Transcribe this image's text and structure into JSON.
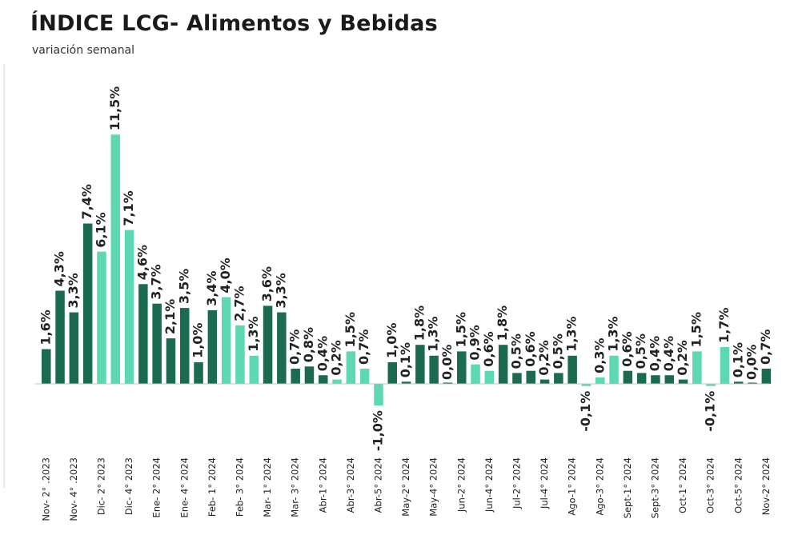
{
  "header": {
    "title": "ÍNDICE LCG- Alimentos y Bebidas",
    "subtitle": "variación semanal"
  },
  "colors": {
    "dark": "#1a6b4f",
    "light": "#5ed8b3"
  },
  "chart_data": {
    "type": "bar",
    "title": "ÍNDICE LCG- Alimentos y Bebidas",
    "subtitle": "variación semanal",
    "ylim": [
      -1.3,
      12.6
    ],
    "grid": false,
    "categories": [
      "Nov- 2° .2023",
      "",
      "Nov- 4° .2023",
      "",
      "Dic- 2° 2023",
      "",
      "Dic- 4° 2023",
      "",
      "Ene- 2° 2024",
      "",
      "Ene- 4° 2024",
      "",
      "Feb- 1° 2024",
      "",
      "Feb- 3° 2024",
      "",
      "Mar- 1° 2024",
      "",
      "Mar- 3° 2024",
      "",
      "Abr-1° 2024",
      "",
      "Abr-3° 2024",
      "",
      "Abr-5° 2024",
      "",
      "May-2° 2024",
      "",
      "May-4° 2024",
      "",
      "Jun-2° 2024",
      "",
      "Jun-4° 2024",
      "",
      "Jul-2° 2024",
      "",
      "Jul-4° 2024",
      "",
      "Ago-1° 2024",
      "",
      "Ago-3° 2024",
      "",
      "Sept-1° 2024",
      "",
      "Sept-3° 2024",
      "",
      "Oct-1° 2024",
      "",
      "Oct-3° 2024",
      "",
      "Oct-5° 2024",
      "",
      "Nov-2° 2024"
    ],
    "values": [
      1.6,
      4.3,
      3.3,
      7.4,
      6.1,
      11.5,
      7.1,
      4.6,
      3.7,
      2.1,
      3.5,
      1.0,
      3.4,
      4.0,
      2.7,
      1.3,
      3.6,
      3.3,
      0.7,
      0.8,
      0.4,
      0.2,
      1.5,
      0.7,
      -1.0,
      1.0,
      0.1,
      1.8,
      1.3,
      0.0,
      1.5,
      0.9,
      0.6,
      1.8,
      0.5,
      0.6,
      0.2,
      0.5,
      1.3,
      -0.1,
      0.3,
      1.3,
      0.6,
      0.5,
      0.4,
      0.4,
      0.2,
      1.5,
      -0.1,
      1.7,
      0.1,
      0.0,
      0.7
    ],
    "labels": [
      "1,6%",
      "4,3%",
      "3,3%",
      "7,4%",
      "6,1%",
      "11,5%",
      "7,1%",
      "4,6%",
      "3,7%",
      "2,1%",
      "3,5%",
      "1,0%",
      "3,4%",
      "4,0%",
      "2,7%",
      "1,3%",
      "3,6%",
      "3,3%",
      "0,7%",
      "0,8%",
      "0,4%",
      "0,2%",
      "1,5%",
      "0,7%",
      "-1,0%",
      "1,0%",
      "0,1%",
      "1,8%",
      "1,3%",
      "0,0%",
      "1,5%",
      "0,9%",
      "0,6%",
      "1,8%",
      "0,5%",
      "0,6%",
      "0,2%",
      "0,5%",
      "1,3%",
      "-0,1%",
      "0,3%",
      "1,3%",
      "0,6%",
      "0,5%",
      "0,4%",
      "0,4%",
      "0,2%",
      "1,5%",
      "-0,1%",
      "1,7%",
      "0,1%",
      "0,0%",
      "0,7%"
    ],
    "highlight": [
      false,
      false,
      false,
      false,
      true,
      true,
      true,
      false,
      false,
      false,
      false,
      false,
      false,
      true,
      true,
      true,
      false,
      false,
      false,
      false,
      false,
      true,
      true,
      true,
      true,
      false,
      false,
      false,
      false,
      false,
      false,
      true,
      true,
      false,
      false,
      false,
      false,
      false,
      false,
      true,
      true,
      true,
      false,
      false,
      false,
      false,
      false,
      true,
      true,
      true,
      false,
      false,
      false
    ]
  }
}
